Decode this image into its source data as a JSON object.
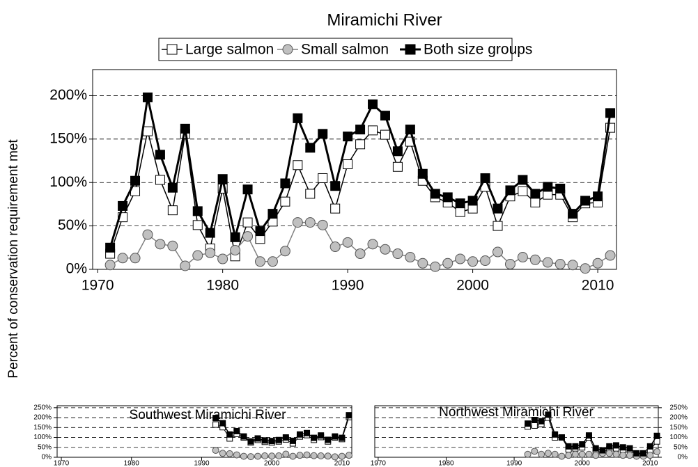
{
  "chart_data": [
    {
      "type": "line",
      "title": "Miramichi River",
      "ylabel": "Percent of conservation requirement met",
      "legend": "top",
      "grid": true,
      "x": [
        1971,
        1972,
        1973,
        1974,
        1975,
        1976,
        1977,
        1978,
        1979,
        1980,
        1981,
        1982,
        1983,
        1984,
        1985,
        1986,
        1987,
        1988,
        1989,
        1990,
        1991,
        1992,
        1993,
        1994,
        1995,
        1996,
        1997,
        1998,
        1999,
        2000,
        2001,
        2002,
        2003,
        2004,
        2005,
        2006,
        2007,
        2008,
        2009,
        2010,
        2011
      ],
      "xlim": [
        1969.6,
        2011.5
      ],
      "xticks": [
        1970,
        1980,
        1990,
        2000,
        2010
      ],
      "ylim": [
        0,
        230
      ],
      "yticks": [
        {
          "value": 0,
          "label": "0%"
        },
        {
          "value": 50,
          "label": "50%"
        },
        {
          "value": 100,
          "label": "100%"
        },
        {
          "value": 150,
          "label": "150%"
        },
        {
          "value": 200,
          "label": "200%"
        }
      ],
      "series": [
        {
          "name": "Large salmon",
          "marker": "square",
          "color": "#ffffff",
          "line_color": "#000000",
          "values": [
            18,
            60,
            90,
            159,
            103,
            68,
            156,
            51,
            24,
            93,
            15,
            54,
            35,
            55,
            78,
            120,
            87,
            105,
            70,
            121,
            144,
            160,
            155,
            118,
            147,
            102,
            83,
            77,
            66,
            70,
            95,
            50,
            84,
            90,
            77,
            86,
            86,
            60,
            76,
            77,
            163
          ]
        },
        {
          "name": "Small salmon",
          "marker": "circle",
          "color": "#c0c0c0",
          "line_color": "#808080",
          "values": [
            5,
            13,
            13,
            40,
            29,
            27,
            4,
            16,
            19,
            12,
            22,
            38,
            9,
            9,
            21,
            54,
            54,
            51,
            26,
            31,
            18,
            29,
            23,
            18,
            14,
            7,
            3,
            7,
            12,
            9,
            10,
            20,
            6,
            14,
            11,
            8,
            6,
            5,
            1,
            7,
            16
          ]
        },
        {
          "name": "Both size groups",
          "marker": "square",
          "color": "#000000",
          "line_color": "#000000",
          "values": [
            25,
            73,
            102,
            198,
            132,
            94,
            162,
            67,
            42,
            104,
            37,
            92,
            44,
            64,
            99,
            174,
            140,
            156,
            96,
            153,
            161,
            190,
            177,
            136,
            161,
            110,
            87,
            83,
            76,
            79,
            105,
            70,
            91,
            103,
            87,
            95,
            93,
            64,
            79,
            84,
            180
          ]
        }
      ]
    },
    {
      "type": "line",
      "title": "Southwest Miramichi River",
      "grid": true,
      "yaxis_side": "left",
      "x": [
        1992,
        1993,
        1994,
        1995,
        1996,
        1997,
        1998,
        1999,
        2000,
        2001,
        2002,
        2003,
        2004,
        2005,
        2006,
        2007,
        2008,
        2009,
        2010,
        2011
      ],
      "xlim": [
        1969.4,
        2011.4
      ],
      "xticks": [
        1970,
        1980,
        1990,
        2000,
        2010
      ],
      "ylim": [
        0,
        260
      ],
      "yticks": [
        {
          "value": 0,
          "label": "0%"
        },
        {
          "value": 50,
          "label": "50%"
        },
        {
          "value": 100,
          "label": "100%"
        },
        {
          "value": 150,
          "label": "150%"
        },
        {
          "value": 200,
          "label": "200%"
        },
        {
          "value": 250,
          "label": "250%"
        }
      ],
      "series": [
        {
          "marker": "square",
          "color": "#ffffff",
          "line_color": "#000000",
          "values": [
            165,
            152,
            95,
            118,
            100,
            75,
            88,
            78,
            75,
            80,
            90,
            70,
            105,
            112,
            88,
            102,
            80,
            100,
            92,
            203
          ]
        },
        {
          "marker": "circle",
          "color": "#c0c0c0",
          "line_color": "#808080",
          "values": [
            35,
            20,
            18,
            12,
            5,
            3,
            5,
            7,
            6,
            7,
            16,
            5,
            10,
            12,
            8,
            7,
            6,
            2,
            5,
            10
          ]
        },
        {
          "marker": "square",
          "color": "#000000",
          "line_color": "#000000",
          "values": [
            198,
            172,
            115,
            132,
            105,
            80,
            95,
            85,
            82,
            87,
            100,
            83,
            115,
            122,
            98,
            110,
            88,
            105,
            98,
            212
          ]
        }
      ]
    },
    {
      "type": "line",
      "title": "Northwest Miramichi River",
      "grid": true,
      "yaxis_side": "right",
      "x": [
        1992,
        1993,
        1994,
        1995,
        1996,
        1997,
        1998,
        1999,
        2000,
        2001,
        2002,
        2003,
        2004,
        2005,
        2006,
        2007,
        2008,
        2009,
        2010,
        2011
      ],
      "xlim": [
        1969.5,
        2011.2
      ],
      "xticks": [
        1970,
        1980,
        1990,
        2000,
        2010
      ],
      "ylim": [
        0,
        260
      ],
      "yticks": [
        {
          "value": 0,
          "label": "0%"
        },
        {
          "value": 50,
          "label": "50%"
        },
        {
          "value": 100,
          "label": "100%"
        },
        {
          "value": 150,
          "label": "150%"
        },
        {
          "value": 200,
          "label": "200%"
        },
        {
          "value": 250,
          "label": "250%"
        }
      ],
      "series": [
        {
          "marker": "square",
          "color": "#ffffff",
          "line_color": "#000000",
          "values": [
            155,
            160,
            168,
            200,
            100,
            100,
            40,
            45,
            50,
            100,
            30,
            25,
            40,
            45,
            38,
            38,
            12,
            15,
            35,
            80
          ]
        },
        {
          "marker": "circle",
          "color": "#c0c0c0",
          "line_color": "#808080",
          "values": [
            15,
            30,
            15,
            20,
            15,
            5,
            10,
            15,
            15,
            15,
            10,
            20,
            20,
            15,
            10,
            10,
            5,
            5,
            10,
            28
          ]
        },
        {
          "marker": "square",
          "color": "#000000",
          "line_color": "#000000",
          "values": [
            170,
            188,
            182,
            215,
            115,
            100,
            55,
            55,
            65,
            110,
            45,
            35,
            55,
            60,
            50,
            45,
            20,
            20,
            55,
            108
          ]
        }
      ]
    }
  ]
}
